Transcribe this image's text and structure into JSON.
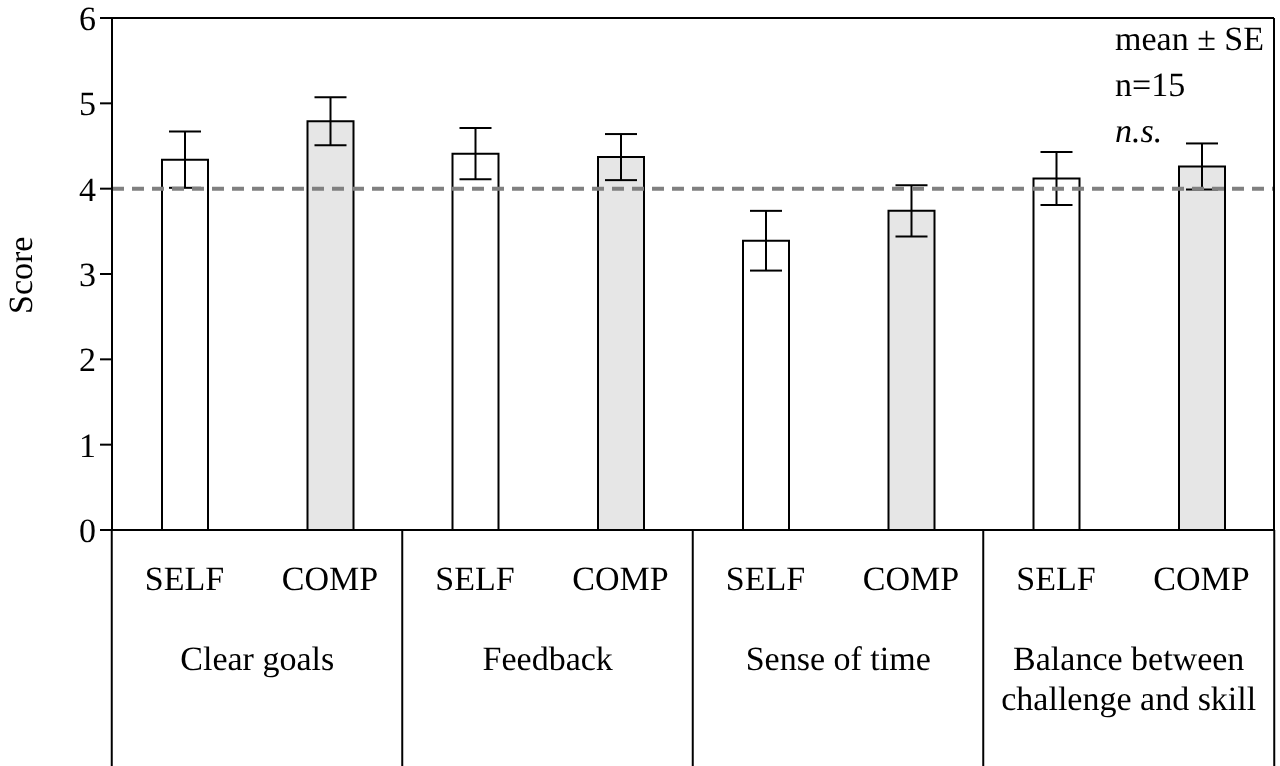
{
  "chart_data": {
    "type": "bar",
    "ylabel": "Score",
    "categories": [
      "Clear goals",
      "Feedback",
      "Sense of time",
      "Balance between challenge and skill"
    ],
    "series": [
      {
        "name": "SELF",
        "color": "#ffffff",
        "values": [
          4.34,
          4.41,
          3.39,
          4.12
        ],
        "errors": [
          0.33,
          0.3,
          0.35,
          0.31
        ]
      },
      {
        "name": "COMP",
        "color": "#e6e6e6",
        "values": [
          4.79,
          4.37,
          3.74,
          4.26
        ],
        "errors": [
          0.28,
          0.27,
          0.3,
          0.27
        ]
      }
    ],
    "ylim": [
      0,
      6
    ],
    "yticks": [
      0,
      1,
      2,
      3,
      4,
      5,
      6
    ],
    "grid": false,
    "legend": false,
    "ref_lines": [
      {
        "axis": "y",
        "value": 4,
        "color": "#808080",
        "line_style": "dashed"
      }
    ],
    "annotations": [
      "mean ± SE",
      "n=15",
      "n.s."
    ]
  }
}
